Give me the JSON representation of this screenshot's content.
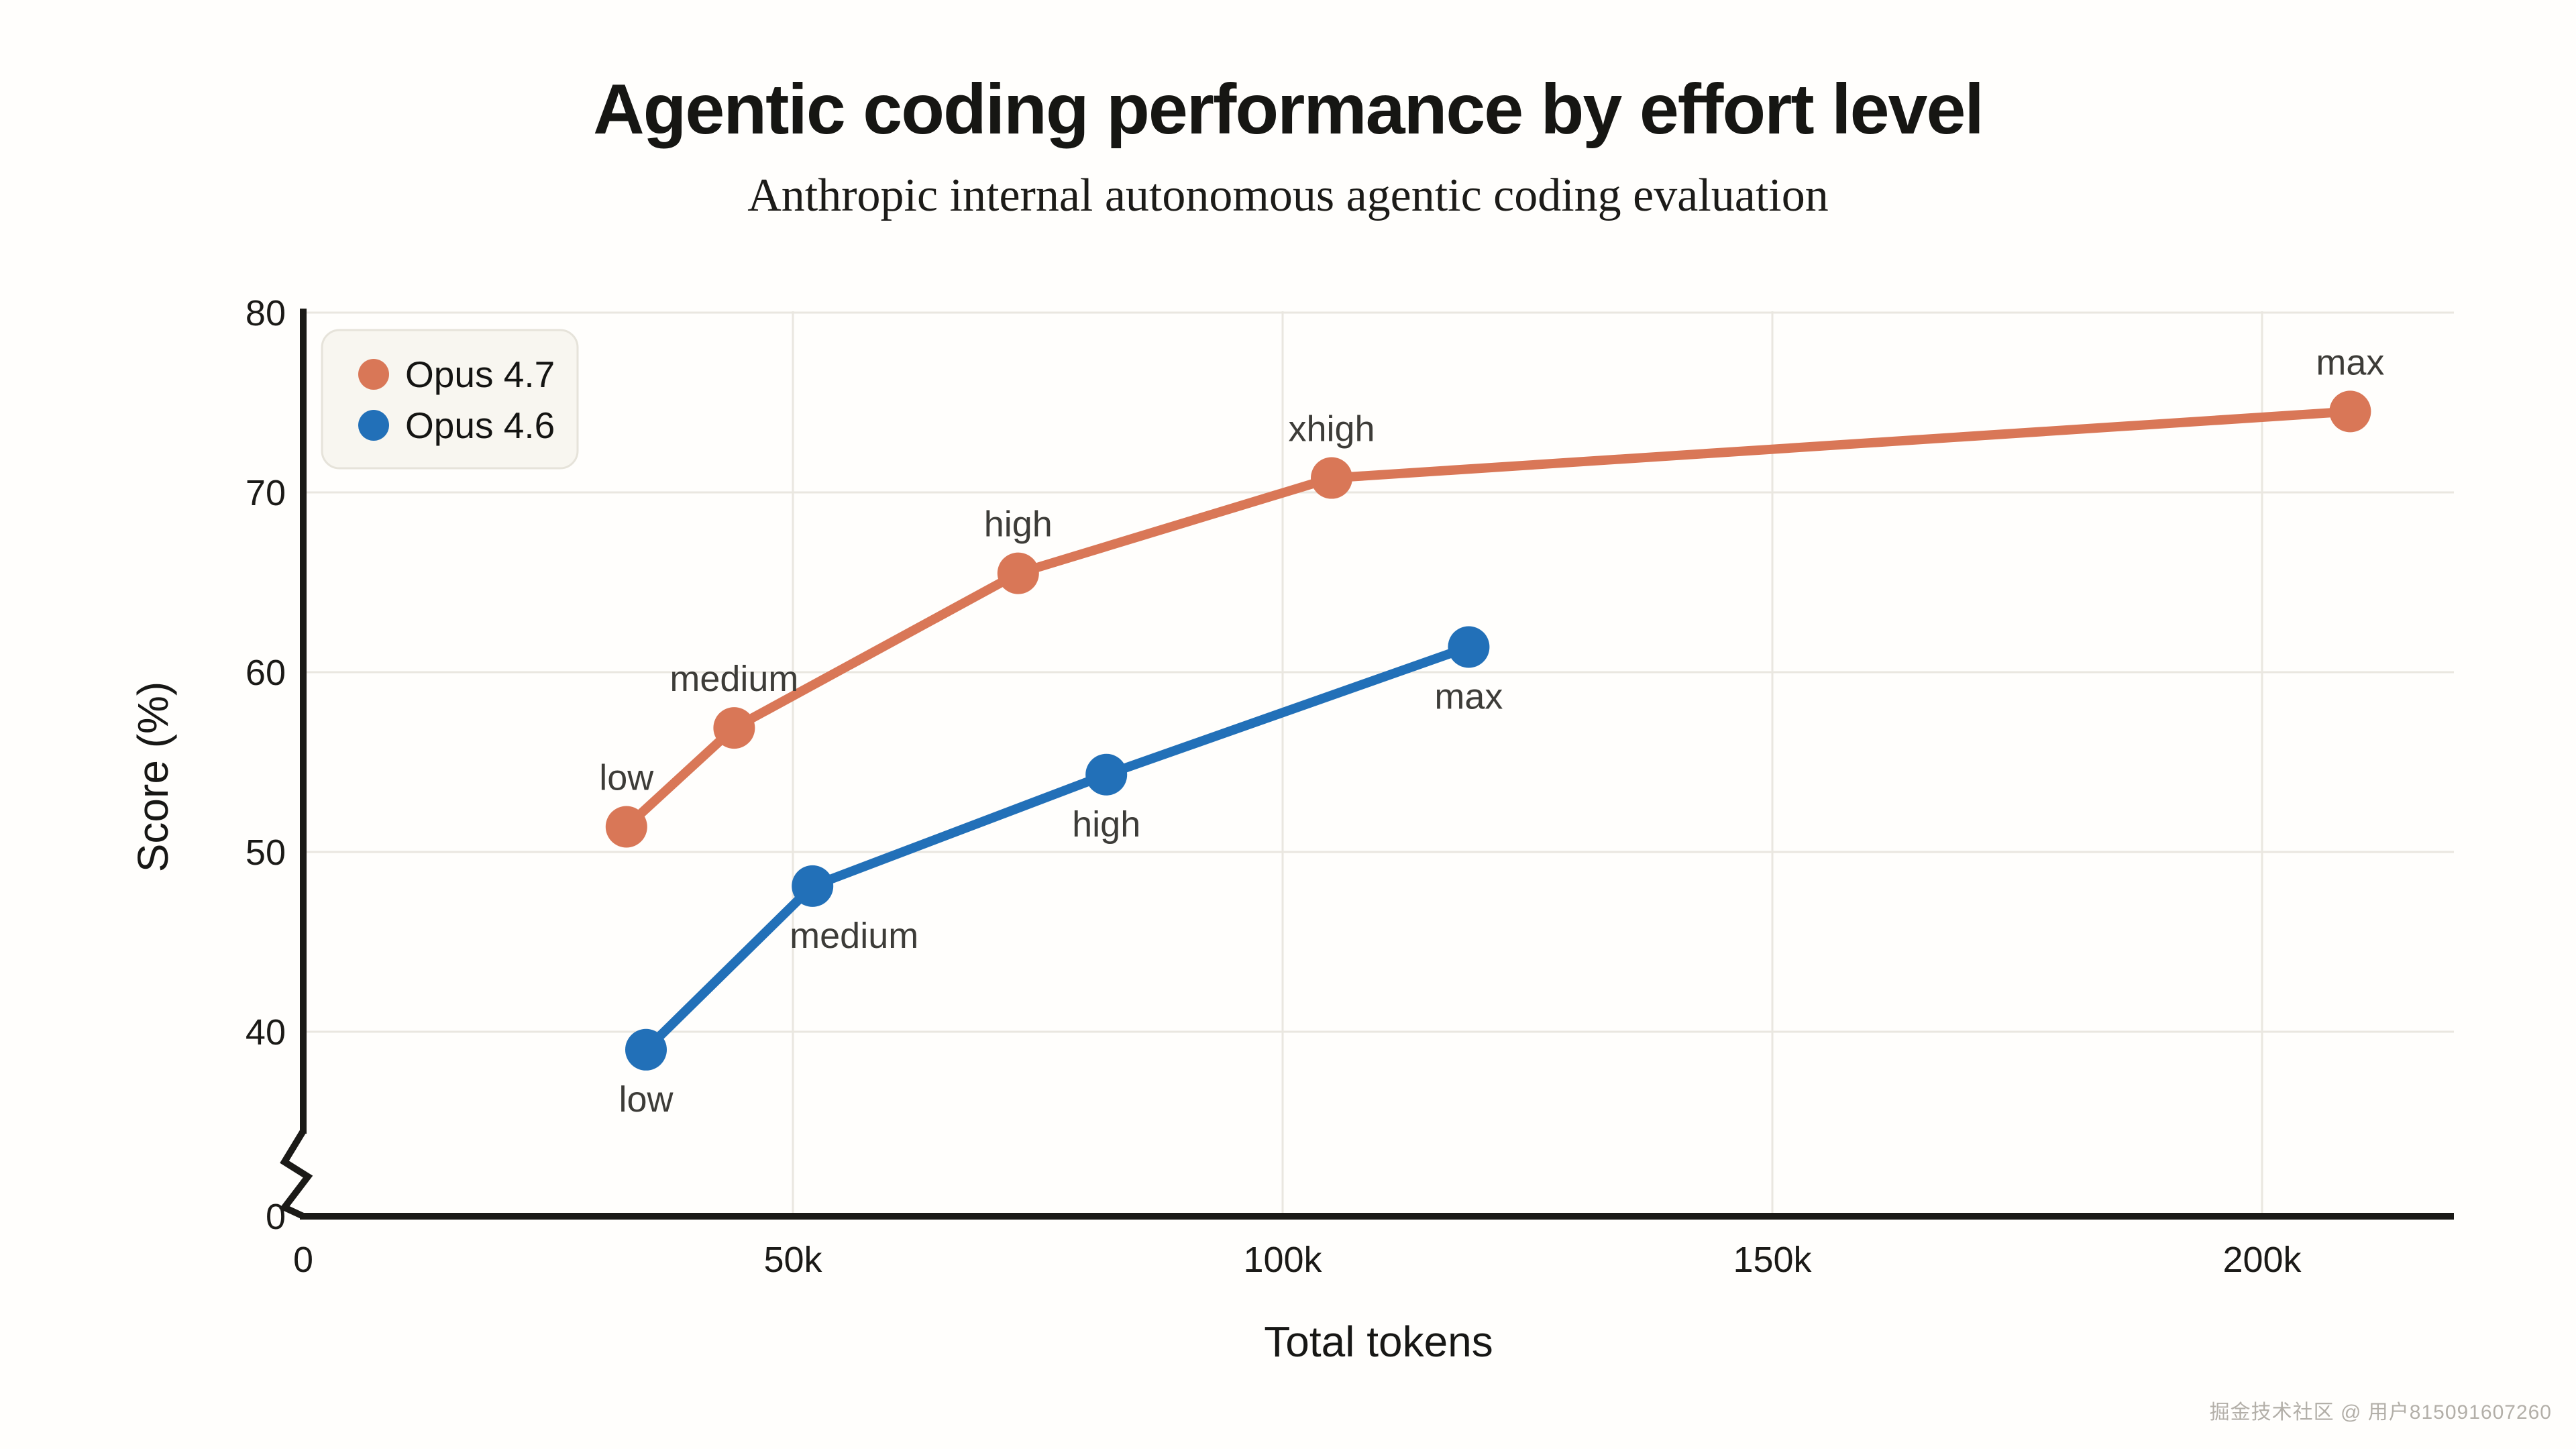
{
  "page": {
    "title": "Agentic coding performance by effort level",
    "subtitle": "Anthropic internal autonomous agentic coding evaluation",
    "watermark": "掘金技术社区 @ 用户815091607260"
  },
  "chart_data": {
    "type": "line",
    "title": "Agentic coding performance by effort level",
    "subtitle": "Anthropic internal autonomous agentic coding evaluation",
    "xlabel": "Total tokens",
    "ylabel": "Score (%)",
    "grid": true,
    "axis_break_on_y": true,
    "ylim_visible": [
      40,
      80
    ],
    "xlim": [
      0,
      220000
    ],
    "legend_position": "top-left",
    "x_ticks": [
      {
        "value": 0,
        "label": "0"
      },
      {
        "value": 50000,
        "label": "50k"
      },
      {
        "value": 100000,
        "label": "100k"
      },
      {
        "value": 150000,
        "label": "150k"
      },
      {
        "value": 200000,
        "label": "200k"
      }
    ],
    "y_ticks": [
      {
        "value": 80,
        "label": "80"
      },
      {
        "value": 70,
        "label": "70"
      },
      {
        "value": 60,
        "label": "60"
      },
      {
        "value": 50,
        "label": "50"
      },
      {
        "value": 40,
        "label": "40"
      },
      {
        "value": 0,
        "label": "0",
        "at_axis_origin": true
      }
    ],
    "series": [
      {
        "name": "Opus 4.7",
        "color": "#D97757",
        "points": [
          {
            "effort": "low",
            "tokens": 33000,
            "score": 51.4,
            "label_placement": "above"
          },
          {
            "effort": "medium",
            "tokens": 44000,
            "score": 56.9,
            "label_placement": "above"
          },
          {
            "effort": "high",
            "tokens": 73000,
            "score": 65.5,
            "label_placement": "above"
          },
          {
            "effort": "xhigh",
            "tokens": 105000,
            "score": 70.8,
            "label_placement": "above"
          },
          {
            "effort": "max",
            "tokens": 209000,
            "score": 74.5,
            "label_placement": "above"
          }
        ]
      },
      {
        "name": "Opus 4.6",
        "color": "#2270B8",
        "points": [
          {
            "effort": "low",
            "tokens": 35000,
            "score": 39.0,
            "label_placement": "below"
          },
          {
            "effort": "medium",
            "tokens": 52000,
            "score": 48.1,
            "label_placement": "below-right"
          },
          {
            "effort": "high",
            "tokens": 82000,
            "score": 54.3,
            "label_placement": "below"
          },
          {
            "effort": "max",
            "tokens": 119000,
            "score": 61.4,
            "label_placement": "below"
          }
        ]
      }
    ],
    "colors": {
      "background": "#fffefc",
      "grid": "#eae7e0",
      "axis": "#1b1a17",
      "tick_text": "#1b1a17",
      "point_label_text": "#3d3c38",
      "axis_title_text": "#171715",
      "legend_bg": "#f8f6f0",
      "legend_border": "#e6e3da",
      "legend_text": "#141412",
      "watermark": "#b3afa8"
    }
  }
}
